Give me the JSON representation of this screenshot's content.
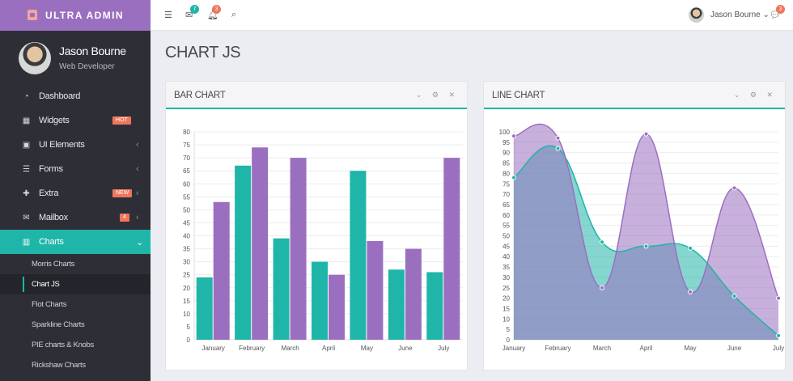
{
  "brand": {
    "name": "ULTRA ADMIN"
  },
  "profile": {
    "name": "Jason Bourne",
    "role": "Web Developer"
  },
  "menu": [
    {
      "label": "Dashboard",
      "icon": "dashboard-icon"
    },
    {
      "label": "Widgets",
      "icon": "grid-icon",
      "badge": "HOT",
      "badge_color": "#f0755c"
    },
    {
      "label": "UI Elements",
      "icon": "briefcase-icon",
      "chevron": "‹"
    },
    {
      "label": "Forms",
      "icon": "sliders-icon",
      "chevron": "‹"
    },
    {
      "label": "Extra",
      "icon": "gift-icon",
      "badge": "NEW",
      "badge_color": "#f0755c",
      "chevron": "‹"
    },
    {
      "label": "Mailbox",
      "icon": "envelope-icon",
      "badge": "4",
      "badge_color": "#f0755c",
      "chevron": "‹"
    },
    {
      "label": "Charts",
      "icon": "bar-chart-icon",
      "chevron": "⌄",
      "active": true
    }
  ],
  "submenu": [
    "Morris Charts",
    "Chart JS",
    "Flot Charts",
    "Sparkline Charts",
    "PIE charts & Knobs",
    "Rickshaw Charts"
  ],
  "topbar": {
    "mail_badge": "7",
    "bell_badge": "3",
    "chat_badge": "3",
    "user_name": "Jason Bourne ⌄"
  },
  "page": {
    "title": "CHART JS"
  },
  "panels": {
    "bar_title": "BAR CHART",
    "line_title": "LINE CHART",
    "tools": "⌄ ⚙ ✕"
  },
  "colors": {
    "teal": "#1fb5a8",
    "purple": "#9b6fc0"
  },
  "chart_data": [
    {
      "type": "bar",
      "title": "BAR CHART",
      "categories": [
        "January",
        "February",
        "March",
        "April",
        "May",
        "June",
        "July"
      ],
      "series": [
        {
          "values": [
            24,
            67,
            39,
            30,
            65,
            27,
            26
          ],
          "color": "#1fb5a8"
        },
        {
          "values": [
            53,
            74,
            70,
            25,
            38,
            35,
            70
          ],
          "color": "#9b6fc0"
        }
      ],
      "ylim": [
        0,
        80
      ],
      "yticks": [
        0,
        5,
        10,
        15,
        20,
        25,
        30,
        35,
        40,
        45,
        50,
        55,
        60,
        65,
        70,
        75,
        80
      ],
      "grid": true
    },
    {
      "type": "area",
      "title": "LINE CHART",
      "categories": [
        "January",
        "February",
        "March",
        "April",
        "May",
        "June",
        "July"
      ],
      "series": [
        {
          "values": [
            78,
            92,
            47,
            45,
            44,
            21,
            2
          ],
          "color": "#1fb5a8"
        },
        {
          "values": [
            98,
            97,
            25,
            99,
            23,
            73,
            20
          ],
          "color": "#9b6fc0"
        }
      ],
      "ylim": [
        0,
        100
      ],
      "yticks": [
        0,
        5,
        10,
        15,
        20,
        25,
        30,
        35,
        40,
        45,
        50,
        55,
        60,
        65,
        70,
        75,
        80,
        85,
        90,
        95,
        100
      ],
      "grid": true
    }
  ]
}
